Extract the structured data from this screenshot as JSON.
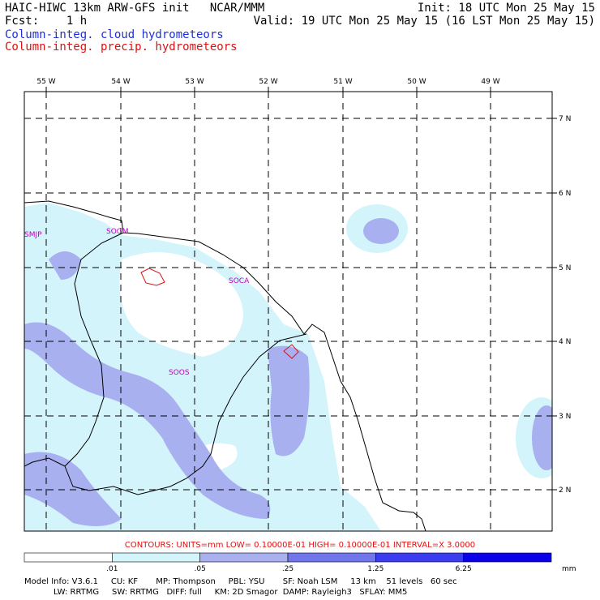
{
  "header": {
    "title": "HAIC-HIWC 13km ARW-GFS init   NCAR/MMM",
    "fcst": "Fcst:    1 h",
    "init": "Init: 18 UTC Mon 25 May 15",
    "valid": "Valid: 19 UTC Mon 25 May 15 (16 LST Mon 25 May 15)",
    "legend1": "Column-integ. cloud hydrometeors",
    "legend2": "Column-integ. precip. hydrometeors"
  },
  "map": {
    "lon_labels": [
      "55 W",
      "54 W",
      "53 W",
      "52 W",
      "51 W",
      "50 W",
      "49 W"
    ],
    "lat_labels": [
      "7 N",
      "6 N",
      "5 N",
      "4 N",
      "3 N",
      "2 N"
    ],
    "stations": [
      "SMJP",
      "SOGM",
      "SOCA",
      "SOOS"
    ]
  },
  "contours_text": "CONTOURS:  UNITS=mm  LOW= 0.10000E-01  HIGH= 0.10000E-01  INTERVAL=X  3.0000",
  "colorbar": {
    "ticks": [
      ".01",
      ".05",
      ".25",
      "1.25",
      "6.25"
    ],
    "units": "mm",
    "colors": [
      "#ffffff",
      "#d4f4fb",
      "#a8b0f0",
      "#7276ec",
      "#3b3cf0",
      "#0a00ea"
    ]
  },
  "model_info": {
    "line1": "Model Info: V3.6.1     CU: KF       MP: Thompson     PBL: YSU       SF: Noah LSM     13 km    51 levels   60 sec",
    "line2": "LW: RRTMG     SW: RRTMG   DIFF: full     KM: 2D Smagor  DAMP: Rayleigh3   SFLAY: MM5"
  }
}
